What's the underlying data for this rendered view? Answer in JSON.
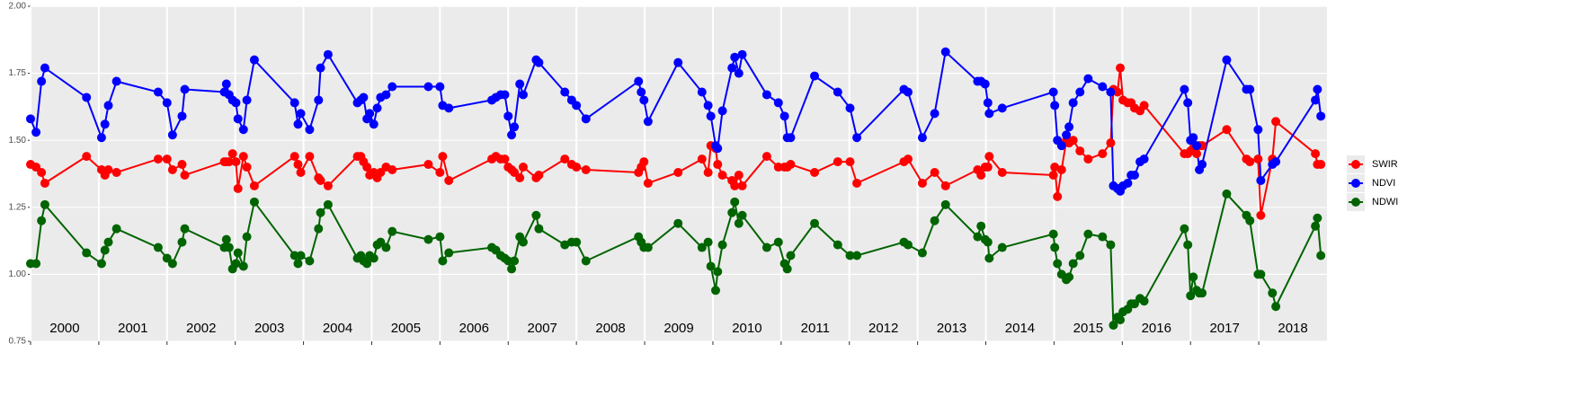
{
  "chart_data": {
    "type": "line",
    "x": [
      2000.0,
      2000.08,
      2000.16,
      2000.21,
      2000.82,
      2001.04,
      2001.09,
      2001.14,
      2001.26,
      2001.87,
      2002.0,
      2002.08,
      2002.22,
      2002.26,
      2002.84,
      2002.87,
      2002.91,
      2002.96,
      2003.01,
      2003.04,
      2003.12,
      2003.17,
      2003.28,
      2003.87,
      2003.92,
      2003.96,
      2004.09,
      2004.22,
      2004.25,
      2004.36,
      2004.79,
      2004.84,
      2004.88,
      2004.93,
      2004.97,
      2005.03,
      2005.08,
      2005.13,
      2005.21,
      2005.3,
      2005.83,
      2006.0,
      2006.04,
      2006.13,
      2006.76,
      2006.82,
      2006.89,
      2006.95,
      2007.0,
      2007.05,
      2007.09,
      2007.17,
      2007.22,
      2007.41,
      2007.45,
      2007.83,
      2007.93,
      2008.0,
      2008.14,
      2008.91,
      2008.95,
      2008.99,
      2009.05,
      2009.49,
      2009.84,
      2009.93,
      2009.97,
      2010.04,
      2010.07,
      2010.14,
      2010.28,
      2010.32,
      2010.38,
      2010.43,
      2010.79,
      2010.96,
      2011.05,
      2011.09,
      2011.14,
      2011.49,
      2011.83,
      2012.01,
      2012.11,
      2012.8,
      2012.86,
      2013.07,
      2013.25,
      2013.41,
      2013.88,
      2013.93,
      2013.99,
      2014.03,
      2014.05,
      2014.24,
      2014.99,
      2015.01,
      2015.05,
      2015.11,
      2015.18,
      2015.22,
      2015.28,
      2015.38,
      2015.5,
      2015.71,
      2015.83,
      2015.87,
      2015.93,
      2015.97,
      2016.01,
      2016.08,
      2016.13,
      2016.18,
      2016.26,
      2016.32,
      2016.91,
      2016.96,
      2017.0,
      2017.04,
      2017.09,
      2017.13,
      2017.17,
      2017.53,
      2017.82,
      2017.87,
      2017.99,
      2018.03,
      2018.2,
      2018.25,
      2018.83,
      2018.86,
      2018.91
    ],
    "series": [
      {
        "name": "SWIR",
        "color": "#ff0000",
        "values": [
          1.41,
          1.4,
          1.38,
          1.34,
          1.44,
          1.39,
          1.37,
          1.39,
          1.38,
          1.43,
          1.43,
          1.39,
          1.41,
          1.37,
          1.42,
          1.42,
          1.42,
          1.45,
          1.42,
          1.32,
          1.44,
          1.4,
          1.33,
          1.44,
          1.41,
          1.38,
          1.44,
          1.36,
          1.35,
          1.33,
          1.44,
          1.44,
          1.42,
          1.4,
          1.37,
          1.38,
          1.36,
          1.38,
          1.4,
          1.39,
          1.41,
          1.38,
          1.44,
          1.35,
          1.43,
          1.44,
          1.43,
          1.43,
          1.4,
          1.39,
          1.38,
          1.36,
          1.4,
          1.36,
          1.37,
          1.43,
          1.41,
          1.4,
          1.39,
          1.38,
          1.4,
          1.42,
          1.34,
          1.38,
          1.43,
          1.38,
          1.48,
          1.47,
          1.41,
          1.37,
          1.35,
          1.33,
          1.37,
          1.33,
          1.44,
          1.4,
          1.4,
          1.4,
          1.41,
          1.38,
          1.42,
          1.42,
          1.34,
          1.42,
          1.43,
          1.34,
          1.38,
          1.33,
          1.39,
          1.37,
          1.4,
          1.4,
          1.44,
          1.38,
          1.37,
          1.4,
          1.29,
          1.39,
          1.5,
          1.49,
          1.5,
          1.46,
          1.43,
          1.45,
          1.49,
          1.69,
          1.68,
          1.77,
          1.65,
          1.64,
          1.64,
          1.62,
          1.61,
          1.63,
          1.45,
          1.45,
          1.46,
          1.47,
          1.45,
          1.48,
          1.48,
          1.54,
          1.43,
          1.42,
          1.43,
          1.22,
          1.43,
          1.57,
          1.45,
          1.41,
          1.41
        ]
      },
      {
        "name": "NDVI",
        "color": "#0000ff",
        "values": [
          1.58,
          1.53,
          1.72,
          1.77,
          1.66,
          1.51,
          1.56,
          1.63,
          1.72,
          1.68,
          1.64,
          1.52,
          1.59,
          1.69,
          1.68,
          1.71,
          1.67,
          1.65,
          1.64,
          1.58,
          1.54,
          1.65,
          1.8,
          1.64,
          1.56,
          1.6,
          1.54,
          1.65,
          1.77,
          1.82,
          1.64,
          1.65,
          1.66,
          1.58,
          1.6,
          1.56,
          1.62,
          1.66,
          1.67,
          1.7,
          1.7,
          1.7,
          1.63,
          1.62,
          1.65,
          1.66,
          1.67,
          1.67,
          1.59,
          1.52,
          1.55,
          1.71,
          1.67,
          1.8,
          1.79,
          1.68,
          1.65,
          1.63,
          1.58,
          1.72,
          1.68,
          1.65,
          1.57,
          1.79,
          1.68,
          1.63,
          1.59,
          1.48,
          1.47,
          1.61,
          1.77,
          1.81,
          1.75,
          1.82,
          1.67,
          1.64,
          1.59,
          1.51,
          1.51,
          1.74,
          1.68,
          1.62,
          1.51,
          1.69,
          1.68,
          1.51,
          1.6,
          1.83,
          1.72,
          1.72,
          1.71,
          1.64,
          1.6,
          1.62,
          1.68,
          1.63,
          1.5,
          1.48,
          1.52,
          1.55,
          1.64,
          1.68,
          1.73,
          1.7,
          1.68,
          1.33,
          1.32,
          1.31,
          1.33,
          1.34,
          1.37,
          1.37,
          1.42,
          1.43,
          1.69,
          1.64,
          1.5,
          1.51,
          1.48,
          1.39,
          1.41,
          1.8,
          1.69,
          1.69,
          1.54,
          1.35,
          1.41,
          1.42,
          1.65,
          1.69,
          1.59
        ]
      },
      {
        "name": "NDWI",
        "color": "#006400",
        "values": [
          1.04,
          1.04,
          1.2,
          1.26,
          1.08,
          1.04,
          1.09,
          1.12,
          1.17,
          1.1,
          1.06,
          1.04,
          1.12,
          1.17,
          1.1,
          1.13,
          1.1,
          1.02,
          1.04,
          1.08,
          1.03,
          1.14,
          1.27,
          1.07,
          1.04,
          1.07,
          1.05,
          1.17,
          1.23,
          1.26,
          1.06,
          1.07,
          1.05,
          1.04,
          1.07,
          1.06,
          1.11,
          1.12,
          1.1,
          1.16,
          1.13,
          1.14,
          1.05,
          1.08,
          1.1,
          1.09,
          1.07,
          1.06,
          1.05,
          1.02,
          1.05,
          1.14,
          1.12,
          1.22,
          1.17,
          1.11,
          1.12,
          1.12,
          1.05,
          1.14,
          1.12,
          1.1,
          1.1,
          1.19,
          1.1,
          1.12,
          1.03,
          0.94,
          1.01,
          1.11,
          1.23,
          1.27,
          1.19,
          1.22,
          1.1,
          1.12,
          1.04,
          1.02,
          1.07,
          1.19,
          1.11,
          1.07,
          1.07,
          1.12,
          1.11,
          1.08,
          1.2,
          1.26,
          1.14,
          1.18,
          1.13,
          1.12,
          1.06,
          1.1,
          1.15,
          1.1,
          1.04,
          1.0,
          0.98,
          0.99,
          1.04,
          1.07,
          1.15,
          1.14,
          1.11,
          0.81,
          0.84,
          0.83,
          0.86,
          0.87,
          0.89,
          0.89,
          0.91,
          0.9,
          1.17,
          1.11,
          0.92,
          0.99,
          0.94,
          0.93,
          0.93,
          1.3,
          1.22,
          1.2,
          1.0,
          1.0,
          0.93,
          0.88,
          1.18,
          1.21,
          1.07
        ]
      }
    ],
    "xlim": [
      2000,
      2019
    ],
    "xticks": [
      2000,
      2001,
      2002,
      2003,
      2004,
      2005,
      2006,
      2007,
      2008,
      2009,
      2010,
      2011,
      2012,
      2013,
      2014,
      2015,
      2016,
      2017,
      2018
    ],
    "ylim": [
      0.75,
      2
    ],
    "yticks": [
      {
        "value": 0.75,
        "label": "0.75"
      },
      {
        "value": 1,
        "label": "1.00"
      },
      1.25,
      {
        "value": 1.5,
        "label": "1.50"
      },
      1.75,
      {
        "value": 2,
        "label": "2.00"
      }
    ],
    "grid": true,
    "legend": "right"
  }
}
